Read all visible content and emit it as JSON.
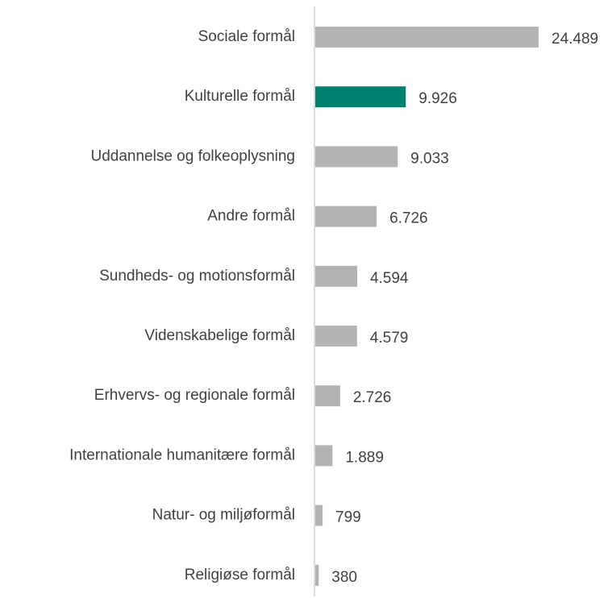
{
  "chart_data": {
    "type": "hbar",
    "categories": [
      "Sociale formål",
      "Kulturelle formål",
      "Uddannelse og folkeoplysning",
      "Andre formål",
      "Sundheds- og motionsformål",
      "Videnskabelige formål",
      "Erhvervs- og regionale formål",
      "Internationale humanitære formål",
      "Natur- og miljøformål",
      "Religiøse formål"
    ],
    "values": [
      24489,
      9926,
      9033,
      6726,
      4594,
      4579,
      2726,
      1889,
      799,
      380
    ],
    "value_labels": [
      "24.489",
      "9.926",
      "9.033",
      "6.726",
      "4.594",
      "4.579",
      "2.726",
      "1.889",
      "799",
      "380"
    ],
    "colors": [
      "#b3b3b3",
      "#00806f",
      "#b3b3b3",
      "#b3b3b3",
      "#b3b3b3",
      "#b3b3b3",
      "#b3b3b3",
      "#b3b3b3",
      "#b3b3b3",
      "#b3b3b3"
    ]
  }
}
